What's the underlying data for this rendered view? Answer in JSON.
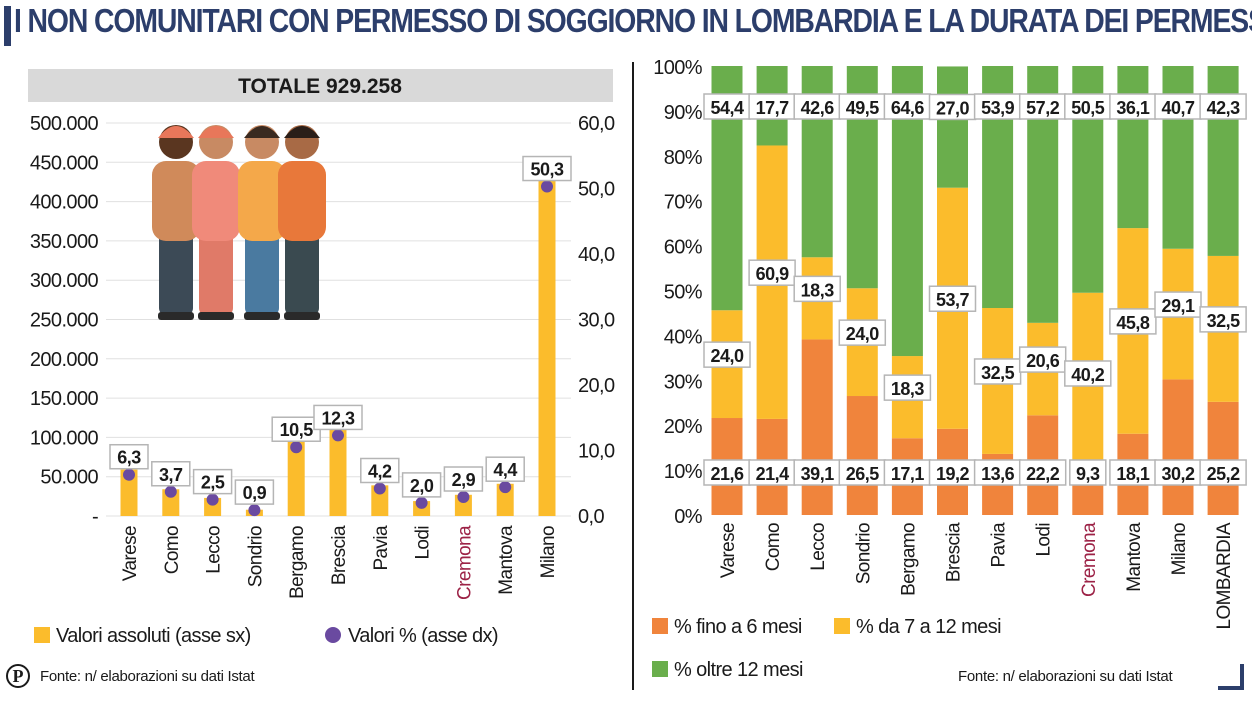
{
  "title": "I NON COMUNITARI  CON PERMESSO DI SOGGIORNO IN LOMBARDIA E LA DURATA DEI PERMESSI",
  "colors": {
    "yellow": "#fbbc2c",
    "purple": "#6a4aa0",
    "orange": "#f0843c",
    "green": "#6aae4c",
    "title": "#2c3e6b",
    "cremona": "#9c2246",
    "grid": "#e0e0e0",
    "banner": "#d9d9d9"
  },
  "left_source": "Fonte: n/ elaborazioni su dati Istat",
  "right_source": "Fonte: n/ elaborazioni su dati Istat",
  "logo_letter": "P",
  "chart_data": [
    {
      "type": "bar",
      "banner": "TOTALE 929.258",
      "categories": [
        "Varese",
        "Como",
        "Lecco",
        "Sondrio",
        "Bergamo",
        "Brescia",
        "Pavia",
        "Lodi",
        "Cremona",
        "Mantova",
        "Milano"
      ],
      "highlight_category": "Cremona",
      "series": [
        {
          "name": "Valori assoluti (asse sx)",
          "axis": "left",
          "values": [
            59000,
            34000,
            23000,
            8000,
            98000,
            115000,
            39000,
            19000,
            27000,
            41000,
            437000
          ]
        },
        {
          "name": "Valori % (asse dx)",
          "axis": "right",
          "values": [
            6.3,
            3.7,
            2.5,
            0.9,
            10.5,
            12.3,
            4.2,
            2.0,
            2.9,
            4.4,
            50.3
          ],
          "labels": [
            "6,3",
            "3,7",
            "2,5",
            "0,9",
            "10,5",
            "12,3",
            "4,2",
            "2,0",
            "2,9",
            "4,4",
            "50,3"
          ]
        }
      ],
      "ylim_left": [
        0,
        500000
      ],
      "ylim_right": [
        0,
        60
      ],
      "yticks_left": [
        "500.000",
        "450.000",
        "400.000",
        "350.000",
        "300.000",
        "250.000",
        "200.000",
        "150.000",
        "100.000",
        "50.000",
        "-"
      ],
      "yticks_right": [
        "60,0",
        "50,0",
        "40,0",
        "30,0",
        "20,0",
        "10,0",
        "0,0"
      ],
      "legend": "bottom",
      "grid": true
    },
    {
      "type": "bar",
      "stacked": true,
      "categories": [
        "Varese",
        "Como",
        "Lecco",
        "Sondrio",
        "Bergamo",
        "Brescia",
        "Pavia",
        "Lodi",
        "Cremona",
        "Mantova",
        "Milano",
        "LOMBARDIA"
      ],
      "highlight_category": "Cremona",
      "series": [
        {
          "name": "% fino a 6 mesi",
          "values": [
            21.6,
            21.4,
            39.1,
            26.5,
            17.1,
            19.2,
            13.6,
            22.2,
            9.3,
            18.1,
            30.2,
            25.2
          ],
          "labels": [
            "21,6",
            "21,4",
            "39,1",
            "26,5",
            "17,1",
            "19,2",
            "13,6",
            "22,2",
            "9,3",
            "18,1",
            "30,2",
            "25,2"
          ]
        },
        {
          "name": "% da 7 a 12 mesi",
          "values": [
            24.0,
            60.9,
            18.3,
            24.0,
            18.3,
            53.7,
            32.5,
            20.6,
            40.2,
            45.8,
            29.1,
            32.5
          ],
          "labels": [
            "24,0",
            "60,9",
            "18,3",
            "24,0",
            "18,3",
            "53,7",
            "32,5",
            "20,6",
            "40,2",
            "45,8",
            "29,1",
            "32,5"
          ]
        },
        {
          "name": "% oltre 12 mesi",
          "values": [
            54.4,
            17.7,
            42.6,
            49.5,
            64.6,
            27.0,
            53.9,
            57.2,
            50.5,
            36.1,
            40.7,
            42.3
          ],
          "labels": [
            "54,4",
            "17,7",
            "42,6",
            "49,5",
            "64,6",
            "27,0",
            "53,9",
            "57,2",
            "50,5",
            "36,1",
            "40,7",
            "42,3"
          ]
        }
      ],
      "ylim": [
        0,
        100
      ],
      "yticks": [
        "100%",
        "90%",
        "80%",
        "70%",
        "60%",
        "50%",
        "40%",
        "30%",
        "20%",
        "10%",
        "0%"
      ],
      "legend": "bottom"
    }
  ]
}
